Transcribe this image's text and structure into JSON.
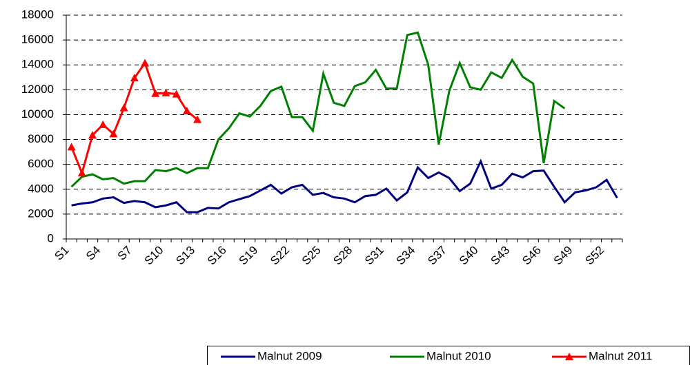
{
  "chart_data": {
    "type": "line",
    "categories": [
      "S1",
      null,
      null,
      "S4",
      null,
      null,
      "S7",
      null,
      null,
      "S10",
      null,
      null,
      "S13",
      null,
      null,
      "S16",
      null,
      null,
      "S19",
      null,
      null,
      "S22",
      null,
      null,
      "S25",
      null,
      null,
      "S28",
      null,
      null,
      "S31",
      null,
      null,
      "S34",
      null,
      null,
      "S37",
      null,
      null,
      "S40",
      null,
      null,
      "S43",
      null,
      null,
      "S46",
      null,
      null,
      "S49",
      null,
      null,
      "S52",
      null
    ],
    "series": [
      {
        "name": "Malnut 2009",
        "color": "#000080",
        "marker": "none",
        "values": [
          2700,
          2850,
          2950,
          3250,
          3350,
          2900,
          3050,
          2950,
          2550,
          2700,
          2950,
          2150,
          2150,
          2500,
          2450,
          2950,
          3200,
          3450,
          3900,
          4350,
          3650,
          4150,
          4350,
          3550,
          3700,
          3350,
          3250,
          2950,
          3450,
          3550,
          4050,
          3100,
          3750,
          5750,
          4900,
          5350,
          4900,
          3850,
          4450,
          6250,
          4050,
          4350,
          5250,
          4950,
          5450,
          5500,
          4200,
          2950,
          3750,
          3900,
          4150,
          4750,
          3300
        ]
      },
      {
        "name": "Malnut 2010",
        "color": "#008000",
        "marker": "none",
        "values": [
          4200,
          5000,
          5200,
          4800,
          4900,
          4450,
          4650,
          4650,
          5550,
          5450,
          5700,
          5300,
          5700,
          5700,
          8000,
          8900,
          10100,
          9850,
          10700,
          11900,
          12250,
          9800,
          9800,
          8700,
          13300,
          10950,
          10700,
          12300,
          12600,
          13600,
          12100,
          12100,
          16400,
          16600,
          14000,
          7600,
          11900,
          14150,
          12200,
          12000,
          13400,
          12950,
          14400,
          13050,
          12500,
          6100,
          11100,
          10500,
          null,
          null,
          null,
          null,
          null
        ]
      },
      {
        "name": "Malnut 2011",
        "color": "#ff0000",
        "marker": "triangle",
        "values": [
          7400,
          5300,
          8350,
          9200,
          8450,
          10550,
          12950,
          14150,
          11700,
          11750,
          11650,
          10300,
          9600,
          null,
          null,
          null,
          null,
          null,
          null,
          null,
          null,
          null,
          null,
          null,
          null,
          null,
          null,
          null,
          null,
          null,
          null,
          null,
          null,
          null,
          null,
          null,
          null,
          null,
          null,
          null,
          null,
          null,
          null,
          null,
          null,
          null,
          null,
          null,
          null,
          null,
          null,
          null,
          null
        ]
      }
    ],
    "ylim": [
      0,
      18000
    ],
    "yticks": [
      0,
      2000,
      4000,
      6000,
      8000,
      10000,
      12000,
      14000,
      16000,
      18000
    ],
    "grid": true,
    "legend": "bottom-right"
  }
}
